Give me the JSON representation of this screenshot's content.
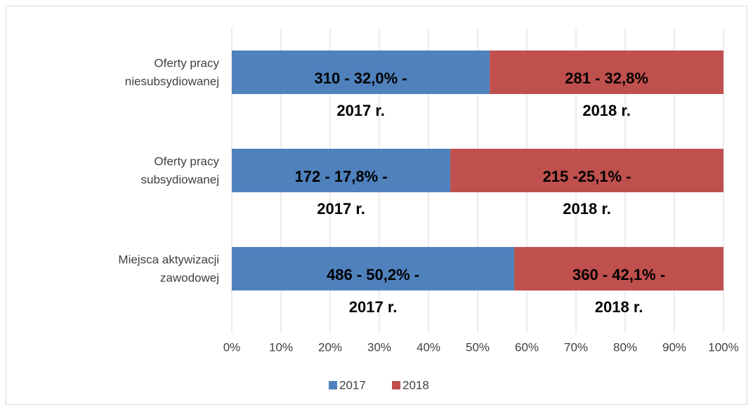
{
  "chart_data": {
    "type": "bar",
    "orientation": "horizontal",
    "stacked": "percent",
    "categories": [
      [
        "Oferty pracy",
        "niesubsydiowanej"
      ],
      [
        "Oferty pracy",
        "subsydiowanej"
      ],
      [
        "Miejsca aktywizacji",
        "zawodowej"
      ]
    ],
    "series": [
      {
        "name": "2017",
        "color": "#4f81bd",
        "values": [
          310,
          172,
          486
        ],
        "value_labels": [
          [
            "310 - 32,0% -",
            "2017 r."
          ],
          [
            "172 -   17,8% -",
            "2017 r."
          ],
          [
            "486 - 50,2% -",
            "2017 r."
          ]
        ]
      },
      {
        "name": "2018",
        "color": "#c0504d",
        "values": [
          281,
          215,
          360
        ],
        "value_labels": [
          [
            "281 -  32,8%",
            "2018 r."
          ],
          [
            "215 -25,1% -",
            "2018 r."
          ],
          [
            "360 - 42,1% -",
            "2018 r."
          ]
        ]
      }
    ],
    "xlim": [
      0,
      100
    ],
    "xticks": [
      {
        "value": 0,
        "label": "0%"
      },
      {
        "value": 10,
        "label": "10%"
      },
      {
        "value": 20,
        "label": "20%"
      },
      {
        "value": 30,
        "label": "30%"
      },
      {
        "value": 40,
        "label": "40%"
      },
      {
        "value": 50,
        "label": "50%"
      },
      {
        "value": 60,
        "label": "60%"
      },
      {
        "value": 70,
        "label": "70%"
      },
      {
        "value": 80,
        "label": "80%"
      },
      {
        "value": 90,
        "label": "90%"
      },
      {
        "value": 100,
        "label": "100%"
      }
    ],
    "grid": true,
    "legend": "bottom"
  }
}
